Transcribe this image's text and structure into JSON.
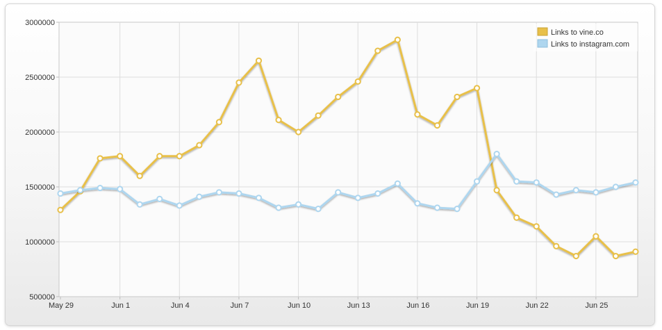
{
  "chart_data": {
    "type": "line",
    "title": "",
    "xlabel": "",
    "ylabel": "",
    "x": [
      "May 29",
      "May 30",
      "May 31",
      "Jun 1",
      "Jun 2",
      "Jun 3",
      "Jun 4",
      "Jun 5",
      "Jun 6",
      "Jun 7",
      "Jun 8",
      "Jun 9",
      "Jun 10",
      "Jun 11",
      "Jun 12",
      "Jun 13",
      "Jun 14",
      "Jun 15",
      "Jun 16",
      "Jun 17",
      "Jun 18",
      "Jun 19",
      "Jun 20",
      "Jun 21",
      "Jun 22",
      "Jun 23",
      "Jun 24",
      "Jun 25",
      "Jun 26",
      "Jun 27"
    ],
    "x_tick_labels": [
      "May 29",
      "Jun 1",
      "Jun 4",
      "Jun 7",
      "Jun 10",
      "Jun 13",
      "Jun 16",
      "Jun 19",
      "Jun 22",
      "Jun 25"
    ],
    "y_tick_labels": [
      "3000000",
      "2500000",
      "2000000",
      "1500000",
      "1000000",
      "500000"
    ],
    "ylim": [
      500000,
      3000000
    ],
    "grid": true,
    "legend_position": "top-right",
    "series": [
      {
        "name": "Links to vine.co",
        "color": "#e8c04a",
        "values": [
          1290000,
          1460000,
          1760000,
          1780000,
          1600000,
          1780000,
          1780000,
          1880000,
          2090000,
          2450000,
          2650000,
          2110000,
          2000000,
          2150000,
          2320000,
          2460000,
          2740000,
          2840000,
          2160000,
          2060000,
          2320000,
          2400000,
          1470000,
          1220000,
          1140000,
          960000,
          870000,
          1050000,
          870000,
          910000
        ]
      },
      {
        "name": "Links to instagram.com",
        "color": "#aed6ef",
        "values": [
          1440000,
          1470000,
          1490000,
          1480000,
          1340000,
          1390000,
          1330000,
          1410000,
          1450000,
          1440000,
          1400000,
          1310000,
          1340000,
          1300000,
          1450000,
          1400000,
          1440000,
          1530000,
          1350000,
          1310000,
          1300000,
          1550000,
          1800000,
          1550000,
          1540000,
          1430000,
          1470000,
          1450000,
          1500000,
          1540000
        ]
      }
    ]
  }
}
